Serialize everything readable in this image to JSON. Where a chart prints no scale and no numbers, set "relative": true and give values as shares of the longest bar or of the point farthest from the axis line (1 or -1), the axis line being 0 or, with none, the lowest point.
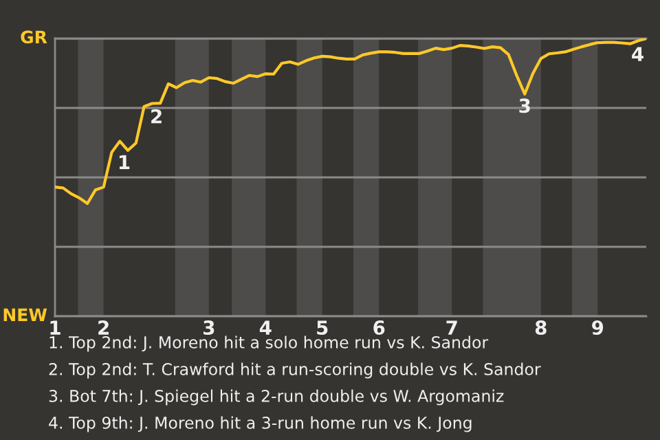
{
  "chart_data": {
    "type": "line",
    "relative": true,
    "categories": [
      "1",
      null,
      null,
      null,
      null,
      null,
      "2",
      null,
      null,
      null,
      null,
      null,
      null,
      null,
      null,
      null,
      null,
      null,
      null,
      "3",
      null,
      null,
      null,
      null,
      null,
      null,
      "4",
      null,
      null,
      null,
      null,
      null,
      null,
      "5",
      null,
      null,
      null,
      null,
      null,
      null,
      "6",
      null,
      null,
      null,
      null,
      null,
      null,
      null,
      null,
      "7",
      null,
      null,
      null,
      null,
      null,
      null,
      null,
      null,
      null,
      null,
      "8",
      null,
      null,
      null,
      null,
      null,
      null,
      "9",
      null,
      null,
      null,
      null,
      null,
      null
    ],
    "series": [
      {
        "color": "#ffc928",
        "values": [
          0.465,
          0.462,
          0.441,
          0.426,
          0.406,
          0.455,
          0.465,
          0.59,
          0.63,
          0.597,
          0.624,
          0.755,
          0.766,
          0.767,
          0.837,
          0.823,
          0.841,
          0.849,
          0.843,
          0.859,
          0.856,
          0.845,
          0.839,
          0.853,
          0.867,
          0.863,
          0.873,
          0.872,
          0.911,
          0.916,
          0.907,
          0.92,
          0.93,
          0.936,
          0.934,
          0.929,
          0.926,
          0.926,
          0.941,
          0.947,
          0.952,
          0.952,
          0.95,
          0.946,
          0.946,
          0.946,
          0.955,
          0.965,
          0.96,
          0.965,
          0.975,
          0.973,
          0.969,
          0.964,
          0.97,
          0.967,
          0.942,
          0.867,
          0.8,
          0.874,
          0.928,
          0.945,
          0.948,
          0.952,
          0.961,
          0.97,
          0.978,
          0.985,
          0.986,
          0.986,
          0.984,
          0.981,
          0.992,
          1.0
        ]
      }
    ],
    "grid": "y",
    "annotations": [
      "GR",
      "NEW",
      {
        "text": "1",
        "y": 0.59
      },
      {
        "text": "2",
        "y": 0.755
      },
      {
        "text": "3",
        "y": 0.8
      },
      {
        "text": "4",
        "y": 1.0
      },
      "1. Top 2nd: J. Moreno hit a solo home run vs K. Sandor",
      "2. Top 2nd: T. Crawford hit a run-scoring double vs K. Sandor",
      "3. Bot 7th: J. Spiegel hit a 2-run double vs W. Argomaniz",
      "4. Top 9th: J. Moreno hit a 3-run home run vs K. Jong"
    ]
  }
}
